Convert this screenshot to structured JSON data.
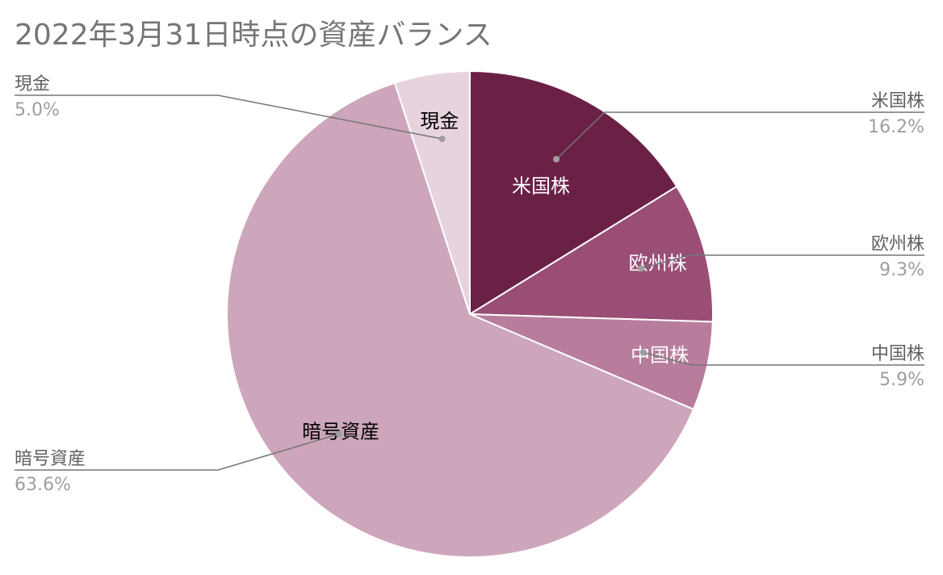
{
  "chart_data": {
    "type": "pie",
    "title": "2022年3月31日時点の資産バランス",
    "categories": [
      "米国株",
      "欧州株",
      "中国株",
      "暗号資産",
      "現金"
    ],
    "values": [
      16.2,
      9.3,
      5.9,
      63.6,
      5.0
    ],
    "value_labels": [
      "16.2%",
      "9.3%",
      "5.9%",
      "63.6%",
      "5.0%"
    ],
    "colors": [
      "#6b2046",
      "#9a4e76",
      "#b87d9d",
      "#cda6bb",
      "#e6d3de"
    ],
    "inner_label_colors": [
      "#ffffff",
      "#ffffff",
      "#ffffff",
      "#000000",
      "#000000"
    ],
    "start_angle_deg": 0,
    "direction": "clockwise",
    "legend": "outside labels with leader lines"
  }
}
